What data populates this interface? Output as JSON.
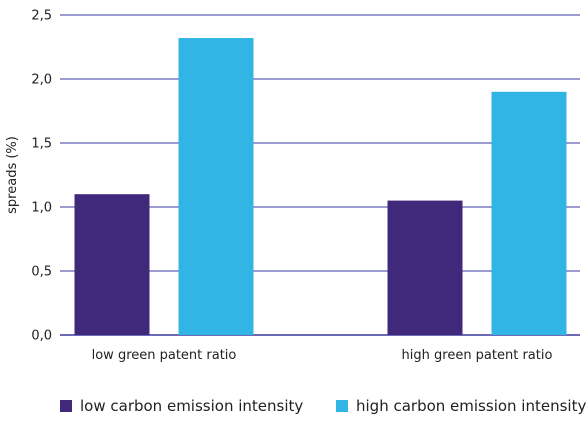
{
  "chart_data": {
    "type": "bar",
    "categories": [
      "low green patent ratio",
      "high green patent ratio"
    ],
    "series": [
      {
        "name": "low carbon emission intensity",
        "values": [
          1.1,
          1.05
        ],
        "color": "#40287a"
      },
      {
        "name": "high carbon emission intensity",
        "values": [
          2.32,
          1.9
        ],
        "color": "#31b5e4"
      }
    ],
    "ylabel": "spreads (%)",
    "xlabel": "",
    "ylim": [
      0,
      2.5
    ],
    "yticks": [
      "0,0",
      "0,5",
      "1,0",
      "1,5",
      "2,0",
      "2,5"
    ],
    "ytick_values": [
      0,
      0.5,
      1.0,
      1.5,
      2.0,
      2.5
    ],
    "grid": true,
    "grid_color": "#3a3aa0",
    "legend_position": "bottom"
  }
}
